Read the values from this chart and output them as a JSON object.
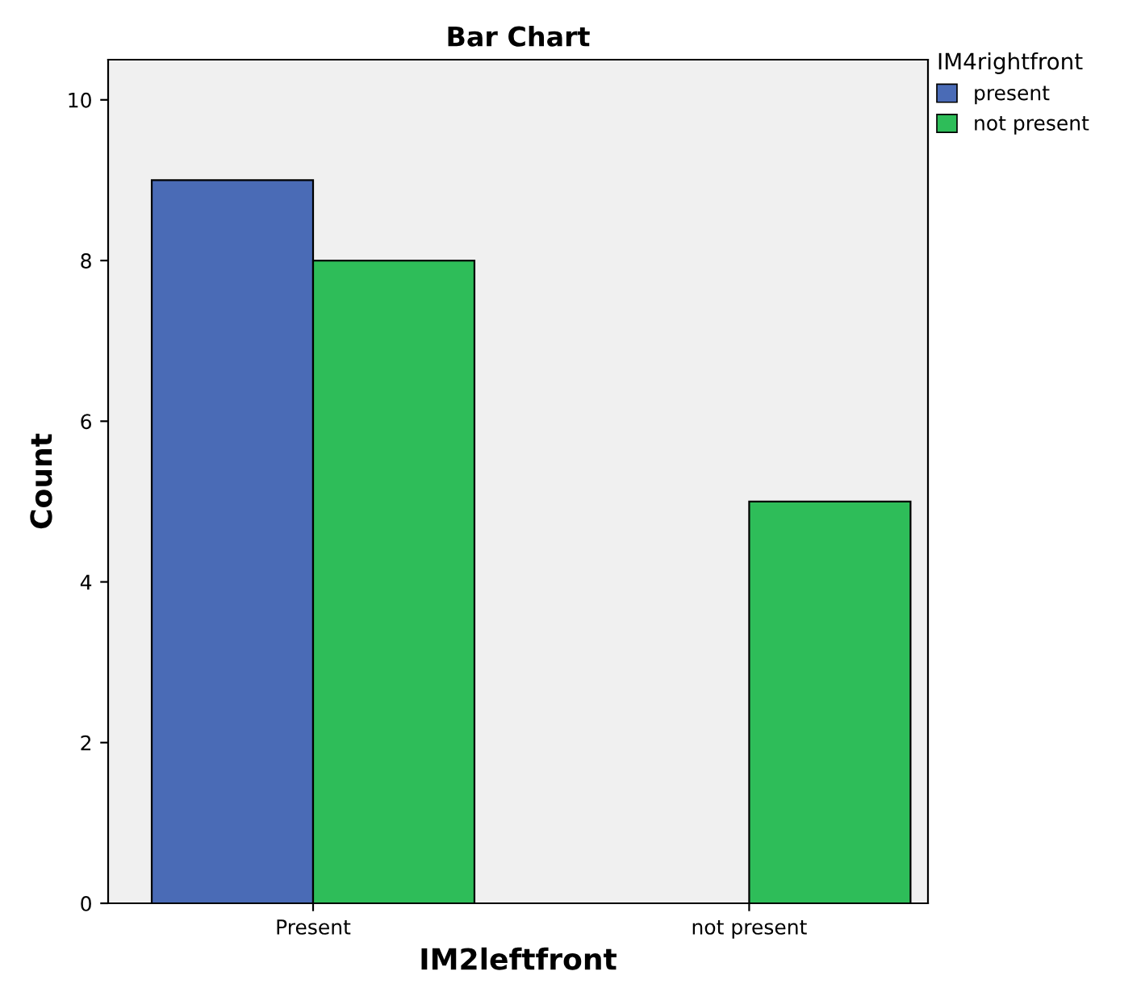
{
  "chart_data": {
    "type": "bar",
    "title": "Bar Chart",
    "xlabel": "IM2leftfront",
    "ylabel": "Count",
    "legend_title": "IM4rightfront",
    "categories": [
      "Present",
      "not present"
    ],
    "series": [
      {
        "name": "present",
        "color": "#4a6bb6",
        "values": [
          9,
          null
        ]
      },
      {
        "name": "not present",
        "color": "#2ebd59",
        "values": [
          8,
          5
        ]
      }
    ],
    "ylim": [
      0,
      10.5
    ],
    "yticks": [
      0,
      2,
      4,
      6,
      8,
      10
    ],
    "grid": false,
    "legend": "top right"
  }
}
